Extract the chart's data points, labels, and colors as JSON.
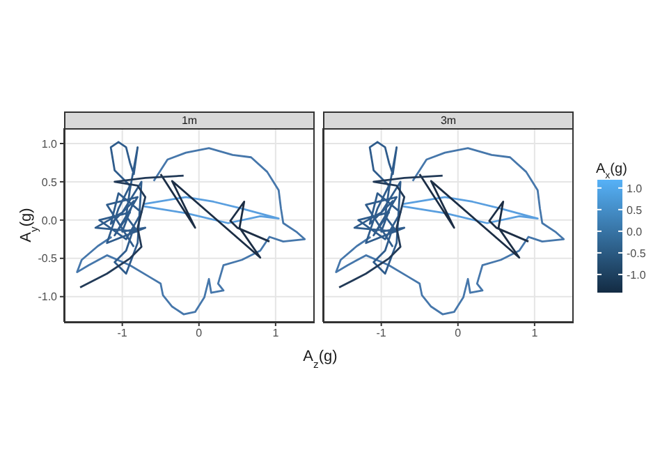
{
  "chart_data": [
    {
      "type": "line",
      "title": "1m",
      "ylabel": "A$_{y}$(g)",
      "xlabel": "A$_{z}$(g)",
      "xlim": [
        -1.76,
        1.51
      ],
      "ylim": [
        -1.33,
        1.2
      ],
      "xticks": [
        -1,
        0,
        1
      ],
      "yticks": [
        {
          "value": -1,
          "label": "-1.0"
        },
        {
          "value": -0.5,
          "label": "-0.5"
        },
        {
          "value": 0,
          "label": "0.0"
        },
        {
          "value": 0.5,
          "label": "0.5"
        },
        {
          "value": 1,
          "label": "1.0"
        }
      ],
      "grid": true,
      "marker": "none",
      "line_style": "solid",
      "series": [
        {
          "color": "#4677ab",
          "x": [
            -0.59,
            -0.41,
            -0.17,
            0.13,
            0.44,
            0.68,
            0.89,
            1.04,
            1.07,
            1.1,
            1.28,
            1.38,
            1.1,
            0.92,
            0.8,
            0.56,
            0.32,
            0.25,
            0.32,
            0.16,
            0.13,
            0.07,
            -0.05,
            -0.2,
            -0.35,
            -0.47,
            -0.5,
            -0.65,
            -0.9,
            -1.2,
            -1.44,
            -1.59,
            -1.53,
            -1.32,
            -1.14
          ],
          "values": [
            0.51,
            0.79,
            0.88,
            0.94,
            0.85,
            0.82,
            0.63,
            0.39,
            0.15,
            -0.04,
            -0.16,
            -0.25,
            -0.28,
            -0.22,
            -0.4,
            -0.52,
            -0.59,
            -0.83,
            -0.92,
            -0.95,
            -0.77,
            -1.01,
            -1.2,
            -1.23,
            -1.13,
            -0.98,
            -0.83,
            -0.74,
            -0.59,
            -0.46,
            -0.59,
            -0.68,
            -0.52,
            -0.34,
            -0.22
          ]
        },
        {
          "color": "#2f5c8c",
          "x": [
            -0.85,
            -1.2,
            -0.8,
            -1.1,
            -0.9,
            -1.3,
            -0.95,
            -0.75,
            -1.05,
            -1.15,
            -0.85,
            -1.0,
            -0.7,
            -1.2,
            -1.05,
            -0.9,
            -1.1,
            -1.15,
            -1.05,
            -0.95,
            -0.9,
            -0.85,
            -0.8,
            -0.9,
            -0.95,
            -0.8,
            -1.35,
            -1.0,
            -0.75,
            -0.8,
            -0.95,
            -1.1,
            -0.95,
            -0.85
          ],
          "values": [
            -0.35,
            0.2,
            0.3,
            -0.2,
            0.1,
            0.0,
            -0.25,
            0.1,
            0.35,
            -0.05,
            0.25,
            -0.15,
            -0.1,
            -0.3,
            0.15,
            0.45,
            0.65,
            0.95,
            1.02,
            0.95,
            0.75,
            0.6,
            0.95,
            0.4,
            0.05,
            -0.15,
            -0.1,
            0.1,
            0.5,
            -0.3,
            -0.7,
            -0.55,
            -0.4,
            -0.1
          ]
        },
        {
          "color": "#5a9fdf",
          "x": [
            -0.72,
            -0.17,
            0.19,
            0.56,
            1.04,
            0.8,
            0.38,
            -0.17,
            -0.72
          ],
          "values": [
            0.21,
            0.3,
            0.24,
            0.15,
            0.02,
            0.05,
            -0.04,
            0.09,
            0.18
          ]
        },
        {
          "color": "#1c2e45",
          "x": [
            -0.5,
            -0.05,
            -0.35,
            0.8,
            0.53,
            0.59,
            0.41,
            0.5,
            0.92
          ],
          "values": [
            0.6,
            -0.1,
            0.51,
            -0.49,
            -0.1,
            0.24,
            -0.01,
            -0.1,
            -0.28
          ]
        },
        {
          "color": "#223a57",
          "x": [
            -1.55,
            -1.2,
            -0.9,
            -0.75,
            -0.8,
            -0.7,
            -0.8,
            -1.1,
            -0.7,
            -0.2
          ],
          "values": [
            -0.88,
            -0.7,
            -0.5,
            -0.35,
            -0.1,
            0.3,
            0.45,
            0.5,
            0.55,
            0.58
          ]
        }
      ]
    },
    {
      "type": "line",
      "title": "3m",
      "xlim": [
        -1.76,
        1.51
      ],
      "ylim": [
        -1.33,
        1.2
      ],
      "xticks": [
        -1,
        0,
        1
      ],
      "yticks": [
        -1,
        -0.5,
        0,
        0.5,
        1
      ],
      "tick_labels": "x",
      "grid": true,
      "marker": "none",
      "line_style": "solid",
      "clabel": "A$_{x}$(g)",
      "clim": [
        -1.42,
        1.19
      ],
      "cticks": [
        {
          "value": -1,
          "label": "-1.0"
        },
        {
          "value": -0.5,
          "label": "-0.5"
        },
        {
          "value": 0,
          "label": "0.0"
        },
        {
          "value": 0.5,
          "label": "0.5"
        },
        {
          "value": 1,
          "label": "1.0"
        }
      ],
      "series": [
        {
          "color": "#4677ab",
          "x": [
            -0.59,
            -0.41,
            -0.17,
            0.13,
            0.44,
            0.68,
            0.89,
            1.04,
            1.07,
            1.1,
            1.28,
            1.38,
            1.1,
            0.92,
            0.8,
            0.56,
            0.32,
            0.25,
            0.32,
            0.16,
            0.13,
            0.07,
            -0.05,
            -0.2,
            -0.35,
            -0.47,
            -0.5,
            -0.65,
            -0.9,
            -1.2,
            -1.44,
            -1.59,
            -1.53,
            -1.32,
            -1.14
          ],
          "values": [
            0.51,
            0.79,
            0.88,
            0.94,
            0.85,
            0.82,
            0.63,
            0.39,
            0.15,
            -0.04,
            -0.16,
            -0.25,
            -0.28,
            -0.22,
            -0.4,
            -0.52,
            -0.59,
            -0.83,
            -0.92,
            -0.95,
            -0.77,
            -1.01,
            -1.2,
            -1.23,
            -1.13,
            -0.98,
            -0.83,
            -0.74,
            -0.59,
            -0.46,
            -0.59,
            -0.68,
            -0.52,
            -0.34,
            -0.22
          ]
        },
        {
          "color": "#2f5c8c",
          "x": [
            -0.85,
            -1.2,
            -0.8,
            -1.1,
            -0.9,
            -1.3,
            -0.95,
            -0.75,
            -1.05,
            -1.15,
            -0.85,
            -1.0,
            -0.7,
            -1.2,
            -1.05,
            -0.9,
            -1.1,
            -1.15,
            -1.05,
            -0.95,
            -0.9,
            -0.85,
            -0.8,
            -0.9,
            -0.95,
            -0.8,
            -1.35,
            -1.0,
            -0.75,
            -0.8,
            -0.95,
            -1.1,
            -0.95,
            -0.85
          ],
          "values": [
            -0.35,
            0.2,
            0.3,
            -0.2,
            0.1,
            0.0,
            -0.25,
            0.1,
            0.35,
            -0.05,
            0.25,
            -0.15,
            -0.1,
            -0.3,
            0.15,
            0.45,
            0.65,
            0.95,
            1.02,
            0.95,
            0.75,
            0.6,
            0.95,
            0.4,
            0.05,
            -0.15,
            -0.1,
            0.1,
            0.5,
            -0.3,
            -0.7,
            -0.55,
            -0.4,
            -0.1
          ]
        },
        {
          "color": "#5a9fdf",
          "x": [
            -0.72,
            -0.17,
            0.19,
            0.56,
            1.04,
            0.8,
            0.38,
            -0.17,
            -0.72
          ],
          "values": [
            0.21,
            0.3,
            0.24,
            0.15,
            0.02,
            0.05,
            -0.04,
            0.09,
            0.18
          ]
        },
        {
          "color": "#1c2e45",
          "x": [
            -0.5,
            -0.05,
            -0.35,
            0.8,
            0.53,
            0.59,
            0.41,
            0.5,
            0.92
          ],
          "values": [
            0.6,
            -0.1,
            0.51,
            -0.49,
            -0.1,
            0.24,
            -0.01,
            -0.1,
            -0.28
          ]
        },
        {
          "color": "#223a57",
          "x": [
            -1.55,
            -1.2,
            -0.9,
            -0.75,
            -0.8,
            -0.7,
            -0.8,
            -1.1,
            -0.7,
            -0.2
          ],
          "values": [
            -0.88,
            -0.7,
            -0.5,
            -0.35,
            -0.1,
            0.3,
            0.45,
            0.5,
            0.55,
            0.58
          ]
        }
      ]
    }
  ]
}
